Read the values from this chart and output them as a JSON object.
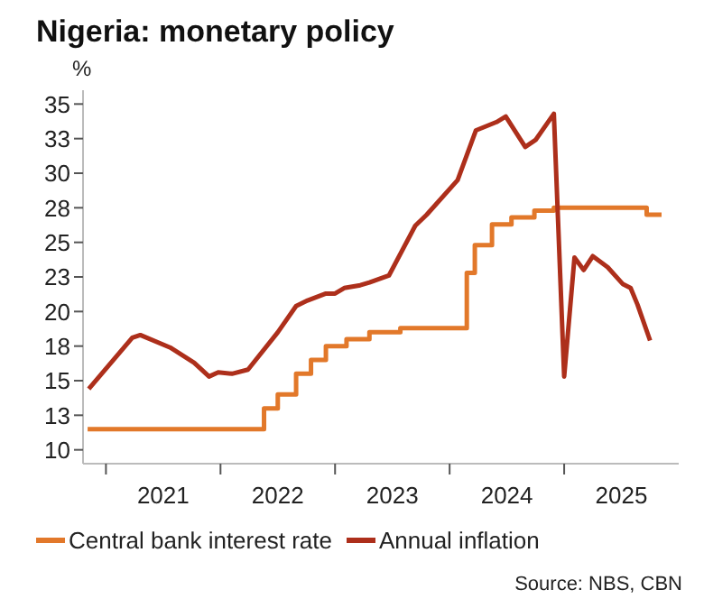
{
  "chart_data": {
    "type": "line",
    "title": "Nigeria: monetary policy",
    "ylabel": "%",
    "xlim": [
      2020.8,
      2026.0
    ],
    "xticks": [
      {
        "value": 2021,
        "label": null
      },
      {
        "value": 2021.5,
        "label": "2021"
      },
      {
        "value": 2022,
        "label": null
      },
      {
        "value": 2022.5,
        "label": "2022"
      },
      {
        "value": 2023,
        "label": null
      },
      {
        "value": 2023.5,
        "label": "2023"
      },
      {
        "value": 2024,
        "label": null
      },
      {
        "value": 2024.5,
        "label": "2024"
      },
      {
        "value": 2025,
        "label": null
      },
      {
        "value": 2025.5,
        "label": "2025"
      }
    ],
    "ylim": [
      9,
      36
    ],
    "yticks": [
      10,
      {
        "value": 12.5,
        "label": "13"
      },
      15,
      {
        "value": 17.5,
        "label": "18"
      },
      20,
      {
        "value": 22.5,
        "label": "23"
      },
      25,
      {
        "value": 27.5,
        "label": "28"
      },
      30,
      {
        "value": 32.5,
        "label": "33"
      },
      35
    ],
    "series": [
      {
        "name": "Central bank interest rate",
        "type": "step",
        "color": "#e2782a",
        "x": [
          2020.84,
          2022.38,
          2022.5,
          2022.66,
          2022.79,
          2022.92,
          2023.1,
          2023.3,
          2023.57,
          2024.15,
          2024.22,
          2024.37,
          2024.54,
          2024.74,
          2024.91,
          2025.72,
          2025.85
        ],
        "values": [
          11.5,
          13,
          14,
          15.5,
          16.5,
          17.5,
          18,
          18.5,
          18.8,
          22.8,
          24.8,
          26.3,
          26.8,
          27.3,
          27.5,
          27,
          27
        ]
      },
      {
        "name": "Annual inflation",
        "color": "#ad2f1b",
        "x": [
          2020.85,
          2021.23,
          2021.3,
          2021.56,
          2021.77,
          2021.9,
          2021.98,
          2022.1,
          2022.24,
          2022.5,
          2022.66,
          2022.76,
          2022.92,
          2023.0,
          2023.08,
          2023.22,
          2023.3,
          2023.47,
          2023.7,
          2023.8,
          2024.07,
          2024.23,
          2024.41,
          2024.49,
          2024.66,
          2024.75,
          2024.91,
          2025.0,
          2025.09,
          2025.17,
          2025.25,
          2025.38,
          2025.51,
          2025.58,
          2025.64,
          2025.75
        ],
        "values": [
          14.4,
          18.1,
          18.3,
          17.4,
          16.3,
          15.3,
          15.6,
          15.5,
          15.8,
          18.5,
          20.4,
          20.8,
          21.3,
          21.3,
          21.7,
          21.9,
          22.1,
          22.6,
          26.2,
          27.0,
          29.5,
          33.1,
          33.7,
          34.1,
          31.9,
          32.4,
          34.3,
          15.3,
          23.9,
          23.0,
          24.0,
          23.2,
          22.0,
          21.7,
          20.5,
          17.9
        ]
      }
    ],
    "legend": "bottom",
    "annotations": [
      "Source: NBS, CBN"
    ]
  }
}
